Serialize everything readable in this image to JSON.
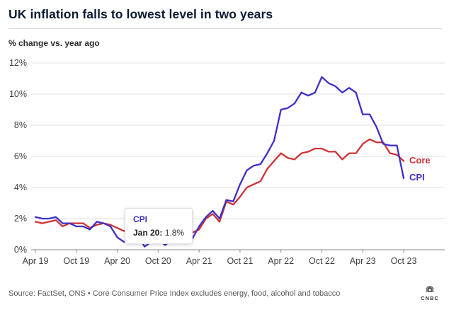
{
  "chart_data": {
    "type": "line",
    "title": "UK inflation falls to lowest level in two years",
    "ylabel": "% change vs. year ago",
    "xlabel": "",
    "ylim": [
      0,
      12
    ],
    "grid": true,
    "legend_position": "line-end-labels",
    "x": [
      "Apr 19",
      "May 19",
      "Jun 19",
      "Jul 19",
      "Aug 19",
      "Sep 19",
      "Oct 19",
      "Nov 19",
      "Dec 19",
      "Jan 20",
      "Feb 20",
      "Mar 20",
      "Apr 20",
      "May 20",
      "Jun 20",
      "Jul 20",
      "Aug 20",
      "Sep 20",
      "Oct 20",
      "Nov 20",
      "Dec 20",
      "Jan 21",
      "Feb 21",
      "Mar 21",
      "Apr 21",
      "May 21",
      "Jun 21",
      "Jul 21",
      "Aug 21",
      "Sep 21",
      "Oct 21",
      "Nov 21",
      "Dec 21",
      "Jan 22",
      "Feb 22",
      "Mar 22",
      "Apr 22",
      "May 22",
      "Jun 22",
      "Jul 22",
      "Aug 22",
      "Sep 22",
      "Oct 22",
      "Nov 22",
      "Dec 22",
      "Jan 23",
      "Feb 23",
      "Mar 23",
      "Apr 23",
      "May 23",
      "Jun 23",
      "Jul 23",
      "Aug 23",
      "Sep 23",
      "Oct 23"
    ],
    "x_tick_labels": [
      "Apr 19",
      "Oct 19",
      "Apr 20",
      "Oct 20",
      "Apr 21",
      "Oct 21",
      "Apr 22",
      "Oct 22",
      "Apr 23",
      "Oct 23"
    ],
    "y_tick_labels": [
      "0%",
      "2%",
      "4%",
      "6%",
      "8%",
      "10%",
      "12%"
    ],
    "series": [
      {
        "name": "Core",
        "color": "#cf3235",
        "values": [
          1.8,
          1.7,
          1.8,
          1.9,
          1.5,
          1.7,
          1.7,
          1.7,
          1.4,
          1.6,
          1.7,
          1.6,
          1.4,
          1.2,
          1.4,
          1.8,
          0.9,
          1.3,
          1.5,
          1.1,
          1.4,
          1.4,
          0.9,
          1.1,
          1.3,
          2.0,
          2.3,
          1.8,
          3.1,
          2.9,
          3.4,
          4.0,
          4.2,
          4.4,
          5.2,
          5.7,
          6.2,
          5.9,
          5.8,
          6.2,
          6.3,
          6.5,
          6.5,
          6.3,
          6.3,
          5.8,
          6.2,
          6.2,
          6.8,
          7.1,
          6.9,
          6.9,
          6.2,
          6.1,
          5.7
        ]
      },
      {
        "name": "CPI",
        "color": "#3d2fc9",
        "values": [
          2.1,
          2.0,
          2.0,
          2.1,
          1.7,
          1.7,
          1.5,
          1.5,
          1.3,
          1.8,
          1.7,
          1.5,
          0.8,
          0.5,
          0.6,
          1.0,
          0.2,
          0.5,
          0.7,
          0.3,
          0.6,
          0.7,
          0.4,
          0.7,
          1.5,
          2.1,
          2.5,
          2.0,
          3.2,
          3.1,
          4.2,
          5.1,
          5.4,
          5.5,
          6.2,
          7.0,
          9.0,
          9.1,
          9.4,
          10.1,
          9.9,
          10.1,
          11.1,
          10.7,
          10.5,
          10.1,
          10.4,
          10.1,
          8.7,
          8.7,
          7.9,
          6.8,
          6.7,
          6.7,
          4.6
        ]
      }
    ],
    "tooltip": {
      "series": "CPI",
      "series_color": "#3d2fc9",
      "date_label": "Jan 20:",
      "value": "1.8%"
    }
  },
  "footer": {
    "source": "Source: FactSet, ONS • Core Consumer Price Index excludes energy, food, alcohol and tobacco",
    "logo_text": "CNBC"
  }
}
